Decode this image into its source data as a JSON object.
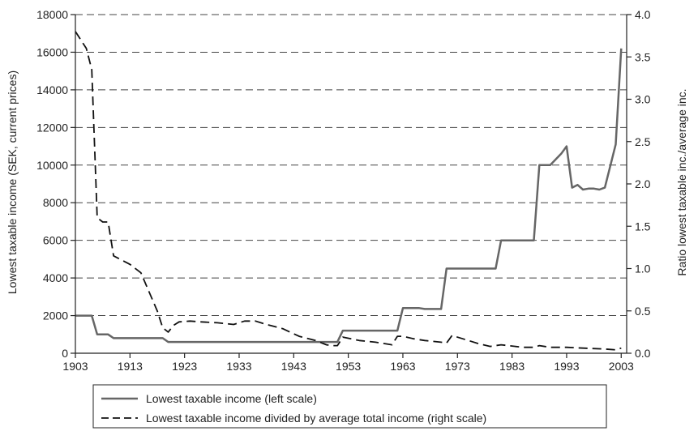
{
  "chart_data": {
    "type": "line",
    "title": "",
    "xlabel": "",
    "ylabel": "Lowest taxable income (SEK, current prices)",
    "y2label": "Ratio lowest taxable inc./average inc.",
    "xlim": [
      1903,
      2004
    ],
    "ylim": [
      0,
      18000
    ],
    "y2lim": [
      0,
      4.0
    ],
    "xticks": [
      1903,
      1913,
      1923,
      1933,
      1943,
      1953,
      1963,
      1973,
      1983,
      1993,
      2003
    ],
    "yticks": [
      0,
      2000,
      4000,
      6000,
      8000,
      10000,
      12000,
      14000,
      16000,
      18000
    ],
    "y2ticks": [
      "0.0",
      "0.5",
      "1.0",
      "1.5",
      "2.0",
      "2.5",
      "3.0",
      "3.5",
      "4.0"
    ],
    "grid": true,
    "legend_position": "bottom",
    "colors": {
      "left_series": "#666666",
      "right_series": "#111111",
      "grid": "#444444"
    },
    "series": [
      {
        "name": "Lowest taxable income (left scale)",
        "axis": "left",
        "style": "solid",
        "x": [
          1903,
          1906,
          1907,
          1909,
          1910,
          1914,
          1916,
          1918,
          1919,
          1920,
          1951,
          1952,
          1953,
          1961,
          1962,
          1963,
          1966,
          1967,
          1970,
          1971,
          1972,
          1979,
          1980,
          1981,
          1987,
          1988,
          1990,
          1992,
          1993,
          1994,
          1995,
          1996,
          1997,
          1998,
          1999,
          2000,
          2002,
          2003
        ],
        "y": [
          2000,
          2000,
          1000,
          1000,
          800,
          800,
          800,
          800,
          800,
          600,
          600,
          1200,
          1200,
          1200,
          1200,
          2400,
          2400,
          2350,
          2350,
          4500,
          4500,
          4500,
          4500,
          6000,
          6000,
          10000,
          10000,
          10600,
          11000,
          8800,
          8950,
          8700,
          8750,
          8750,
          8700,
          8800,
          11100,
          16200
        ]
      },
      {
        "name": "Lowest taxable income divided by average total income (right scale)",
        "axis": "right",
        "style": "dashed",
        "x": [
          1903,
          1905,
          1906,
          1907,
          1908,
          1909,
          1910,
          1913,
          1915,
          1916,
          1918,
          1919,
          1920,
          1921,
          1922,
          1924,
          1926,
          1929,
          1932,
          1934,
          1936,
          1938,
          1941,
          1944,
          1947,
          1949,
          1950,
          1951,
          1952,
          1955,
          1958,
          1961,
          1962,
          1963,
          1965,
          1967,
          1970,
          1971,
          1972,
          1975,
          1977,
          1979,
          1981,
          1985,
          1987,
          1988,
          1990,
          1993,
          1996,
          2000,
          2002,
          2003
        ],
        "y": [
          3.8,
          3.6,
          3.35,
          1.6,
          1.55,
          1.55,
          1.15,
          1.05,
          0.95,
          0.8,
          0.5,
          0.3,
          0.25,
          0.33,
          0.37,
          0.38,
          0.37,
          0.36,
          0.34,
          0.38,
          0.38,
          0.34,
          0.29,
          0.2,
          0.15,
          0.1,
          0.09,
          0.09,
          0.19,
          0.15,
          0.13,
          0.1,
          0.2,
          0.2,
          0.17,
          0.15,
          0.13,
          0.12,
          0.21,
          0.15,
          0.11,
          0.08,
          0.1,
          0.07,
          0.07,
          0.09,
          0.07,
          0.07,
          0.06,
          0.05,
          0.04,
          0.06
        ]
      }
    ]
  }
}
